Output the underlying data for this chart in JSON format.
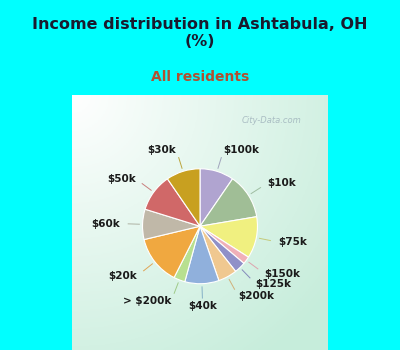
{
  "title": "Income distribution in Ashtabula, OH\n(%)",
  "subtitle": "All residents",
  "title_color": "#1a1a2e",
  "subtitle_color": "#b05030",
  "bg_top": "#00FFFF",
  "watermark": "City-Data.com",
  "labels": [
    "$100k",
    "$10k",
    "$75k",
    "$150k",
    "$125k",
    "$200k",
    "$40k",
    "> $200k",
    "$20k",
    "$60k",
    "$50k",
    "$30k"
  ],
  "values": [
    9,
    12,
    11,
    2,
    3,
    5,
    9,
    3,
    13,
    8,
    10,
    9
  ],
  "colors": [
    "#b0a4d0",
    "#a0be96",
    "#f0f080",
    "#f0b0b8",
    "#9090c8",
    "#f0c890",
    "#90b0dc",
    "#b8e090",
    "#f0a840",
    "#c0b8a8",
    "#d06868",
    "#c8a020"
  ],
  "startangle": 90,
  "title_fontsize": 11.5,
  "subtitle_fontsize": 10,
  "label_fontsize": 7.5
}
